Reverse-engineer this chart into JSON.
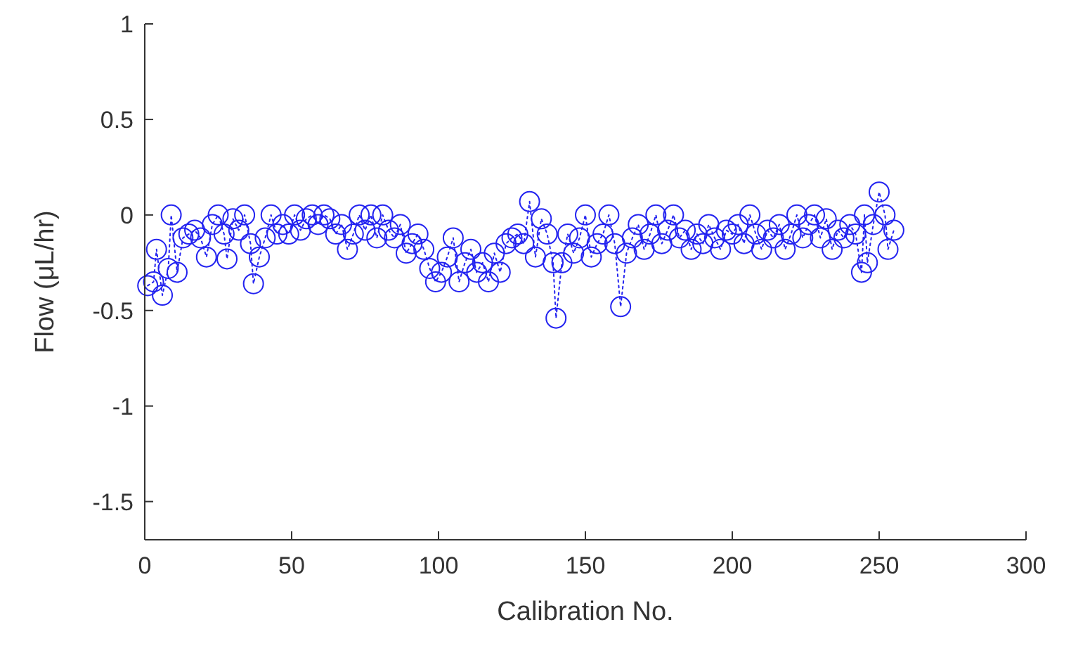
{
  "chart_data": {
    "type": "line",
    "xlabel": "Calibration No.",
    "ylabel": "Flow (μL/hr)",
    "xlim": [
      0,
      300
    ],
    "xticks": [
      0,
      50,
      100,
      150,
      200,
      250,
      300
    ],
    "ylim": [
      -1.7,
      1
    ],
    "yticks": [
      -1.5,
      -1,
      -0.5,
      0,
      0.5,
      1
    ],
    "grid": false,
    "marker": "circle",
    "line_style": "dotted",
    "series": [
      {
        "color": "#2323f0",
        "x": [
          1,
          3,
          4,
          6,
          8,
          9,
          11,
          13,
          15,
          17,
          19,
          21,
          23,
          25,
          27,
          28,
          30,
          32,
          34,
          36,
          37,
          39,
          41,
          43,
          45,
          47,
          49,
          51,
          53,
          55,
          57,
          59,
          61,
          63,
          65,
          67,
          69,
          71,
          73,
          75,
          77,
          79,
          81,
          83,
          85,
          87,
          89,
          91,
          93,
          95,
          97,
          99,
          101,
          103,
          105,
          107,
          109,
          111,
          113,
          115,
          117,
          119,
          121,
          123,
          125,
          127,
          129,
          131,
          133,
          135,
          137,
          139,
          140,
          142,
          144,
          146,
          148,
          150,
          152,
          154,
          156,
          158,
          160,
          162,
          164,
          166,
          168,
          170,
          172,
          174,
          176,
          178,
          180,
          182,
          184,
          186,
          188,
          190,
          192,
          194,
          196,
          198,
          200,
          202,
          204,
          206,
          208,
          210,
          212,
          214,
          216,
          218,
          220,
          222,
          224,
          226,
          228,
          230,
          232,
          234,
          236,
          238,
          240,
          242,
          244,
          245,
          246,
          248,
          250,
          252,
          253,
          255
        ],
        "values": [
          -0.37,
          -0.35,
          -0.18,
          -0.42,
          -0.28,
          0,
          -0.3,
          -0.12,
          -0.1,
          -0.08,
          -0.12,
          -0.22,
          -0.05,
          0,
          -0.1,
          -0.23,
          -0.02,
          -0.08,
          0,
          -0.15,
          -0.36,
          -0.22,
          -0.12,
          0,
          -0.1,
          -0.05,
          -0.1,
          0,
          -0.08,
          -0.02,
          0,
          -0.05,
          0,
          -0.02,
          -0.1,
          -0.05,
          -0.18,
          -0.1,
          0,
          -0.08,
          0,
          -0.12,
          0,
          -0.08,
          -0.12,
          -0.05,
          -0.2,
          -0.15,
          -0.1,
          -0.18,
          -0.28,
          -0.35,
          -0.3,
          -0.22,
          -0.12,
          -0.35,
          -0.25,
          -0.18,
          -0.3,
          -0.25,
          -0.35,
          -0.2,
          -0.3,
          -0.15,
          -0.12,
          -0.1,
          -0.15,
          0.07,
          -0.22,
          -0.02,
          -0.1,
          -0.25,
          -0.54,
          -0.25,
          -0.1,
          -0.2,
          -0.12,
          0,
          -0.22,
          -0.15,
          -0.1,
          0,
          -0.15,
          -0.48,
          -0.2,
          -0.12,
          -0.05,
          -0.18,
          -0.1,
          0,
          -0.15,
          -0.08,
          0,
          -0.12,
          -0.08,
          -0.18,
          -0.1,
          -0.15,
          -0.05,
          -0.12,
          -0.18,
          -0.08,
          -0.1,
          -0.05,
          -0.15,
          0,
          -0.1,
          -0.18,
          -0.08,
          -0.12,
          -0.05,
          -0.18,
          -0.1,
          0,
          -0.12,
          -0.05,
          0,
          -0.12,
          -0.02,
          -0.18,
          -0.08,
          -0.12,
          -0.05,
          -0.1,
          -0.3,
          0,
          -0.25,
          -0.05,
          0.12,
          0,
          -0.18,
          -0.08
        ]
      }
    ]
  }
}
